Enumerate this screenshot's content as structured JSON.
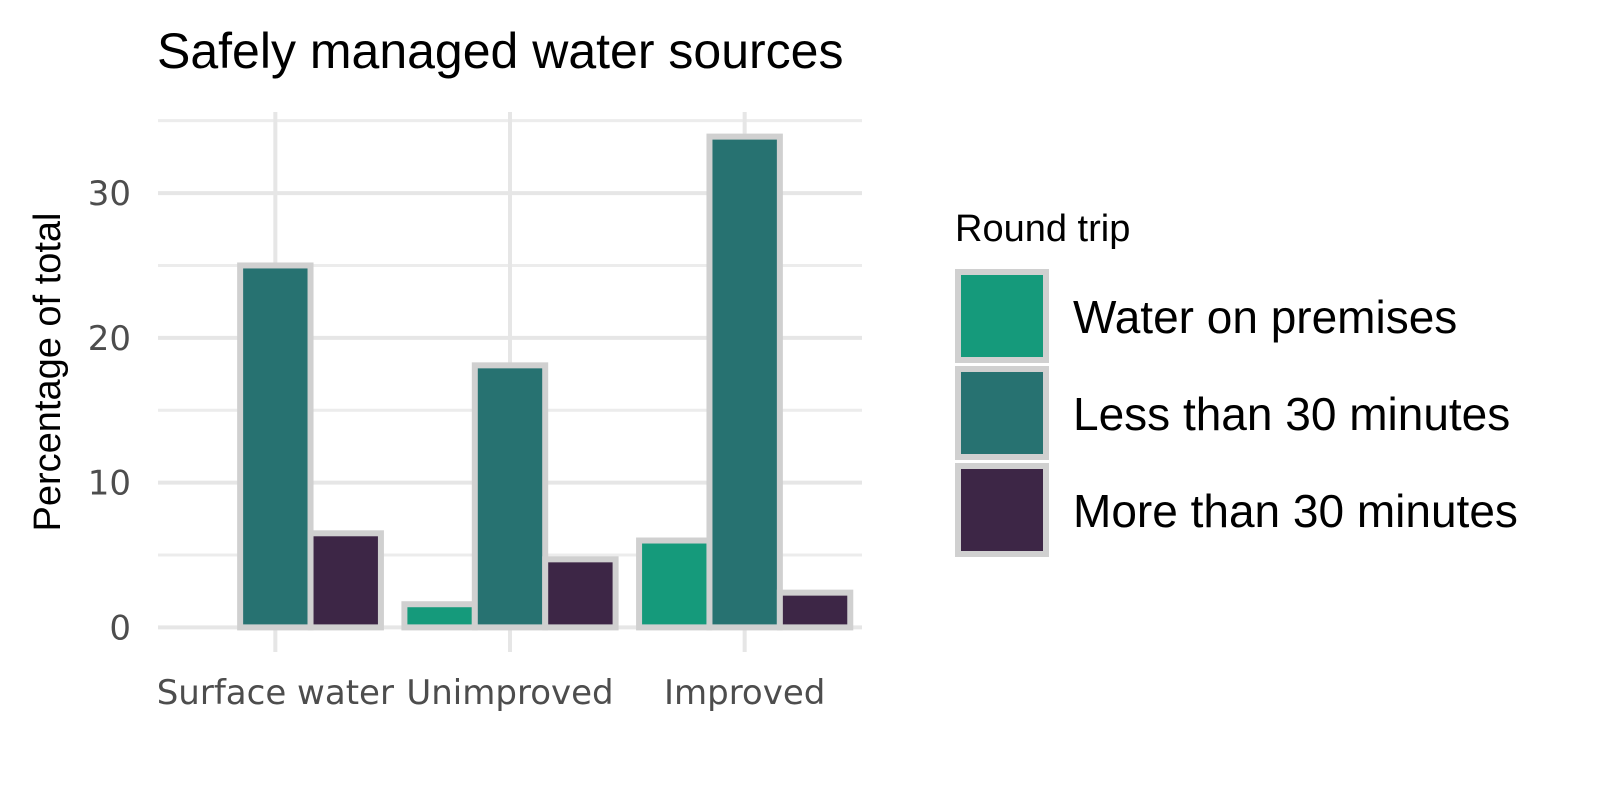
{
  "chart_data": {
    "type": "bar",
    "title": "Safely managed water sources",
    "xlabel": "",
    "ylabel": "Percentage of total",
    "categories": [
      "Surface water",
      "Unimproved",
      "Improved"
    ],
    "series": [
      {
        "name": "Water on premises",
        "color": "#159a7b",
        "values": [
          0,
          1.6,
          6.0
        ]
      },
      {
        "name": "Less than 30 minutes",
        "color": "#277271",
        "values": [
          25.0,
          18.1,
          33.9
        ]
      },
      {
        "name": "More than 30 minutes",
        "color": "#3d2646",
        "values": [
          6.5,
          4.7,
          2.4
        ]
      }
    ],
    "yticks": [
      0,
      10,
      20,
      30
    ],
    "ylim": [
      -1.7,
      35.6
    ],
    "grid": true,
    "legend": {
      "title": "Round trip",
      "position": "right"
    }
  }
}
